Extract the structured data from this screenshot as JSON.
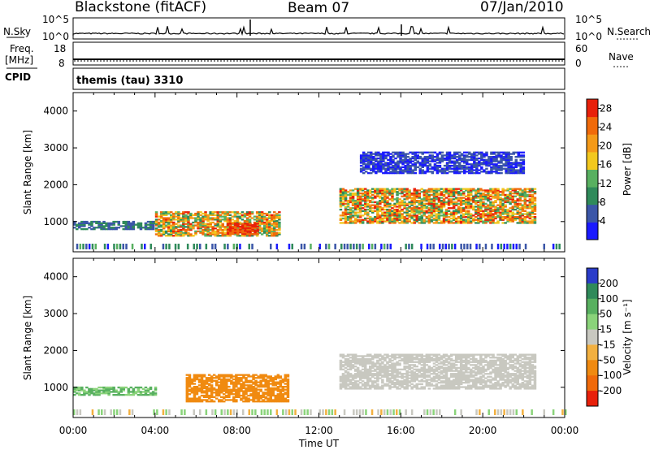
{
  "header": {
    "station": "Blackstone (fitACF)",
    "beam": "Beam 07",
    "date": "07/Jan/2010"
  },
  "nsky_panel": {
    "label": "N.Sky",
    "right_label": "N.Search",
    "left_ticks": [
      "10^5",
      "10^0"
    ],
    "right_ticks": [
      "10^5",
      "10^0"
    ]
  },
  "freq_panel": {
    "label_line1": "Freq.",
    "label_line2": "[MHz]",
    "right_label": "Nave",
    "left_ticks": [
      "18",
      "8"
    ],
    "right_ticks": [
      "60",
      "0"
    ]
  },
  "cpid": {
    "label": "CPID",
    "value": "themis (tau) 3310"
  },
  "colors": {
    "power_scale": [
      "#1a1aff",
      "#3b56a8",
      "#2f8a5a",
      "#58b060",
      "#f2c81e",
      "#f49a18",
      "#f06a0a",
      "#e8200a"
    ],
    "velocity_scale": [
      "#2a3cc9",
      "#2f8a5a",
      "#58b060",
      "#8ad37a",
      "#c8c8c0",
      "#f2b040",
      "#f08a10",
      "#f06a0a",
      "#e8200a"
    ]
  },
  "chart_data": [
    {
      "type": "heatmap",
      "title": "",
      "xlabel": "",
      "ylabel": "Slant Range [km]",
      "xlim": [
        "00:00",
        "00:00"
      ],
      "ylim": [
        180,
        4500
      ],
      "yticks": [
        "1000",
        "2000",
        "3000",
        "4000"
      ],
      "colorbar": {
        "label": "Power [dB]",
        "ticks": [
          "4",
          "8",
          "12",
          "16",
          "20",
          "24",
          "28"
        ],
        "range": [
          0,
          30
        ]
      },
      "echo_regions": [
        {
          "t_start": 0.0,
          "t_end": 4.0,
          "range_km": [
            780,
            1000
          ],
          "power_db": [
            4,
            10
          ]
        },
        {
          "t_start": 4.0,
          "t_end": 10.0,
          "range_km": [
            600,
            1250
          ],
          "power_db": [
            8,
            28
          ]
        },
        {
          "t_start": 7.5,
          "t_end": 9.0,
          "range_km": [
            650,
            950
          ],
          "power_db": [
            24,
            30
          ]
        },
        {
          "t_start": 13.0,
          "t_end": 22.5,
          "range_km": [
            950,
            1900
          ],
          "power_db": [
            8,
            30
          ]
        },
        {
          "t_start": 14.0,
          "t_end": 22.0,
          "range_km": [
            2300,
            2900
          ],
          "power_db": [
            2,
            6
          ]
        }
      ]
    },
    {
      "type": "heatmap",
      "title": "",
      "xlabel": "Time UT",
      "ylabel": "Slant Range [km]",
      "xlim": [
        "00:00",
        "00:00"
      ],
      "ylim": [
        180,
        4500
      ],
      "xticks": [
        "00:00",
        "04:00",
        "08:00",
        "12:00",
        "16:00",
        "20:00",
        "00:00"
      ],
      "yticks": [
        "1000",
        "2000",
        "3000",
        "4000"
      ],
      "colorbar": {
        "label": "Velocity [m s^-1]",
        "ticks": [
          "200",
          "100",
          "50",
          "15",
          "-15",
          "-50",
          "-100",
          "-200"
        ]
      },
      "echo_regions": [
        {
          "t_start": 0.0,
          "t_end": 4.0,
          "range_km": [
            780,
            1000
          ],
          "velocity": [
            15,
            100
          ]
        },
        {
          "t_start": 5.5,
          "t_end": 10.5,
          "range_km": [
            600,
            1350
          ],
          "velocity": [
            -100,
            -50
          ]
        },
        {
          "t_start": 13.0,
          "t_end": 22.5,
          "range_km": [
            950,
            1900
          ],
          "velocity": [
            -15,
            15
          ]
        }
      ]
    }
  ]
}
